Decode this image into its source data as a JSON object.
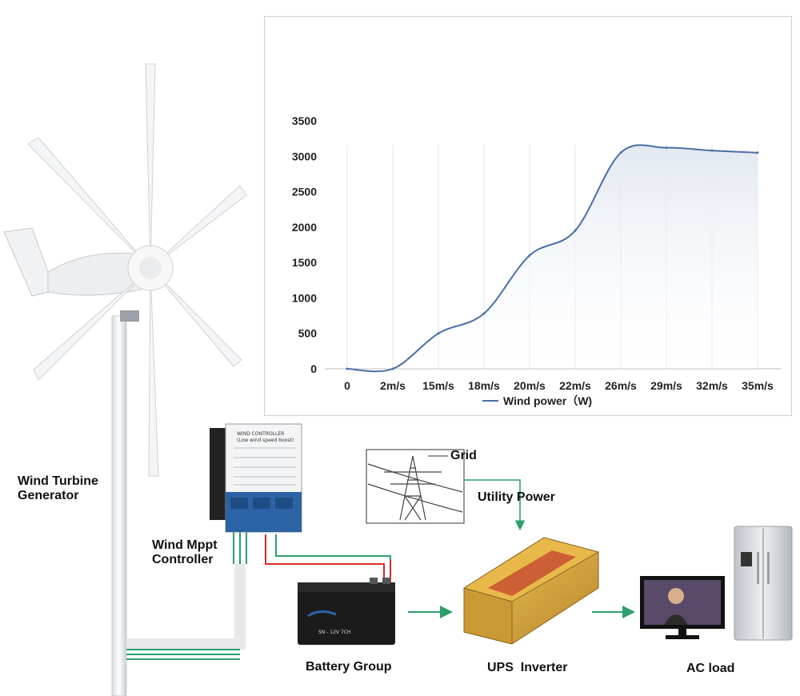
{
  "labels": {
    "turbine": [
      "Wind Turbine",
      "Generator"
    ],
    "controller": [
      "Wind Mppt",
      "Controller"
    ],
    "grid": "Grid",
    "utility": "Utility Power",
    "battery": "Battery Group",
    "inverter": "UPS  Inverter",
    "ac_load": "AC load"
  },
  "controller_panel": {
    "title": "WIND CONTROLLER",
    "subtitle": "(Low wind speed boost)"
  },
  "battery_label": "SN - 12V 7CH",
  "colors": {
    "arrow": "#2f9e6e",
    "line": "#4a6fa5",
    "wire_red": "#d62d2d",
    "wire_green": "#2f9e6e",
    "inverter_gold": "#d4a43a"
  },
  "chart_data": {
    "type": "line",
    "categories": [
      "0",
      "2m/s",
      "15m/s",
      "18m/s",
      "20m/s",
      "22m/s",
      "26m/s",
      "29m/s",
      "32m/s",
      "35m/s"
    ],
    "series": [
      {
        "name": "Wind power（W)",
        "values": [
          0,
          0,
          500,
          780,
          1600,
          1950,
          3050,
          3120,
          3080,
          3050
        ]
      }
    ],
    "y_ticks": [
      "0",
      "500",
      "1000",
      "1500",
      "2000",
      "2500",
      "3000",
      "3500"
    ],
    "ylim": [
      0,
      3500
    ],
    "grid": "vertical",
    "legend": "bottom"
  }
}
